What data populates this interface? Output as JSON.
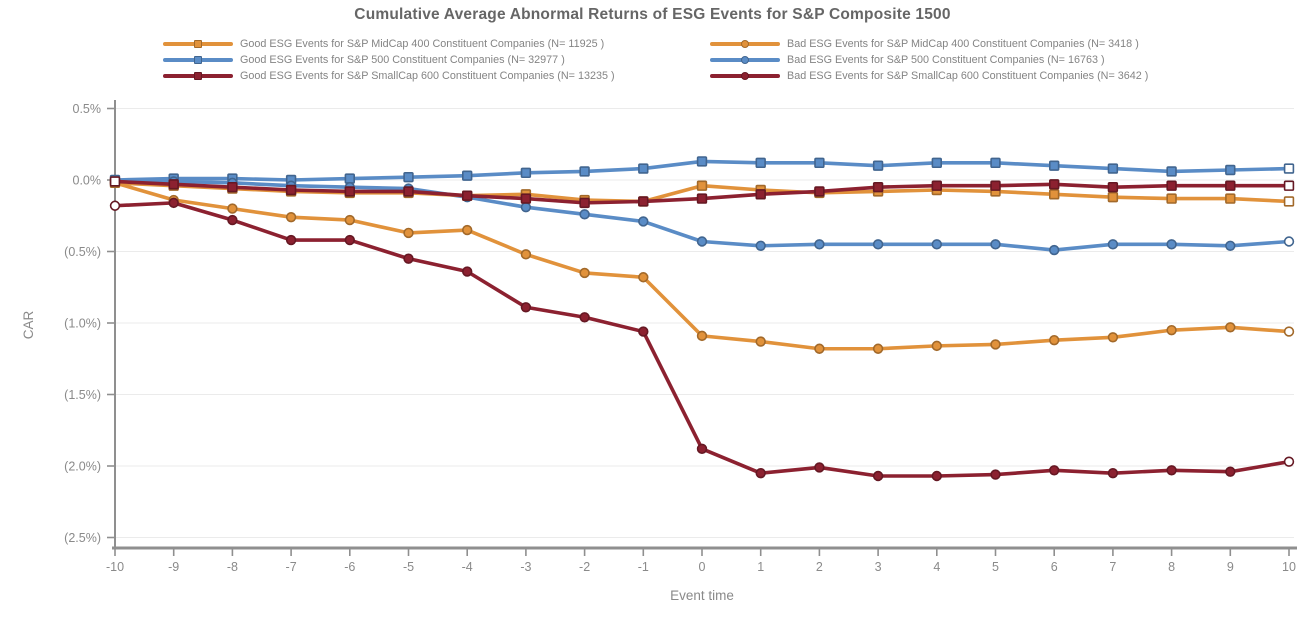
{
  "title": "Cumulative Average Abnormal Returns of ESG Events for S&P Composite 1500",
  "chart_data": {
    "type": "line",
    "title": "Cumulative Average Abnormal Returns of ESG Events for S&P Composite 1500",
    "xlabel": "Event time",
    "ylabel": "CAR",
    "x": [
      -10,
      -9,
      -8,
      -7,
      -6,
      -5,
      -4,
      -3,
      -2,
      -1,
      0,
      1,
      2,
      3,
      4,
      5,
      6,
      7,
      8,
      9,
      10
    ],
    "xlim": [
      -10,
      10
    ],
    "ylim": [
      -2.5,
      0.5
    ],
    "y_units": "percent",
    "ytick_values": [
      0.5,
      0.0,
      -0.5,
      -1.0,
      -1.5,
      -2.0,
      -2.5
    ],
    "ytick_labels": [
      "0.5%",
      "0.0%",
      "(0.5%)",
      "(1.0%)",
      "(1.5%)",
      "(2.0%)",
      "(2.5%)"
    ],
    "grid": true,
    "legend_position": "top",
    "series": [
      {
        "name": "Good ESG Events for S&P MidCap 400 Constituent Companies (N= 11925 )",
        "color": "#E1923B",
        "marker": "square",
        "values": [
          -0.02,
          -0.04,
          -0.06,
          -0.08,
          -0.09,
          -0.09,
          -0.11,
          -0.1,
          -0.14,
          -0.15,
          -0.04,
          -0.07,
          -0.09,
          -0.08,
          -0.07,
          -0.08,
          -0.1,
          -0.12,
          -0.13,
          -0.13,
          -0.15
        ]
      },
      {
        "name": "Bad ESG Events for S&P MidCap 400 Constituent Companies (N= 3418 )",
        "color": "#E1923B",
        "marker": "circle",
        "values": [
          -0.02,
          -0.14,
          -0.2,
          -0.26,
          -0.28,
          -0.37,
          -0.35,
          -0.52,
          -0.65,
          -0.68,
          -1.09,
          -1.13,
          -1.18,
          -1.18,
          -1.16,
          -1.15,
          -1.12,
          -1.1,
          -1.05,
          -1.03,
          -1.06
        ]
      },
      {
        "name": "Good ESG Events for S&P 500 Constituent Companies (N= 32977 )",
        "color": "#5A8CC6",
        "marker": "square",
        "values": [
          0.0,
          0.01,
          0.01,
          0.0,
          0.01,
          0.02,
          0.03,
          0.05,
          0.06,
          0.08,
          0.13,
          0.12,
          0.12,
          0.1,
          0.12,
          0.12,
          0.1,
          0.08,
          0.06,
          0.07,
          0.08
        ]
      },
      {
        "name": "Bad ESG Events for S&P 500 Constituent Companies (N= 16763 )",
        "color": "#5A8CC6",
        "marker": "circle",
        "values": [
          -0.01,
          -0.01,
          -0.02,
          -0.04,
          -0.05,
          -0.06,
          -0.12,
          -0.19,
          -0.24,
          -0.29,
          -0.43,
          -0.46,
          -0.45,
          -0.45,
          -0.45,
          -0.45,
          -0.49,
          -0.45,
          -0.45,
          -0.46,
          -0.43
        ]
      },
      {
        "name": "Good ESG Events for S&P SmallCap 600 Constituent Companies (N= 13235 )",
        "color": "#8C2130",
        "marker": "square",
        "values": [
          -0.01,
          -0.03,
          -0.05,
          -0.07,
          -0.08,
          -0.08,
          -0.11,
          -0.13,
          -0.16,
          -0.15,
          -0.13,
          -0.1,
          -0.08,
          -0.05,
          -0.04,
          -0.04,
          -0.03,
          -0.05,
          -0.04,
          -0.04,
          -0.04
        ]
      },
      {
        "name": "Bad ESG Events for S&P SmallCap 600 Constituent Companies (N= 3642 )",
        "color": "#8C2130",
        "marker": "circle",
        "values": [
          -0.18,
          -0.16,
          -0.28,
          -0.42,
          -0.42,
          -0.55,
          -0.64,
          -0.89,
          -0.96,
          -1.06,
          -1.88,
          -2.05,
          -2.01,
          -2.07,
          -2.07,
          -2.06,
          -2.03,
          -2.05,
          -2.03,
          -2.04,
          -1.97
        ]
      }
    ]
  }
}
